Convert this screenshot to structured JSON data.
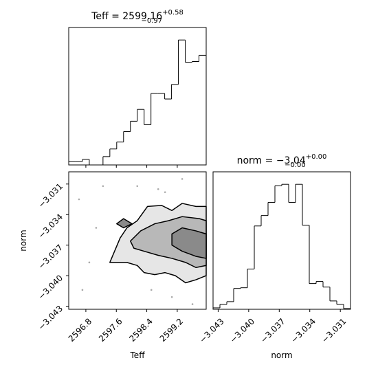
{
  "chart_data": [
    {
      "type": "histogram",
      "title": "Teff = 2599.16",
      "title_sup": "+0.58",
      "title_sub": "−0.97",
      "bins": [
        2596.35,
        2596.53,
        2596.71,
        2596.89,
        2597.07,
        2597.25,
        2597.43,
        2597.61,
        2597.79,
        2597.97,
        2598.15,
        2598.33,
        2598.51,
        2598.69,
        2598.87,
        2599.05,
        2599.23,
        2599.41,
        2599.59,
        2599.77,
        2599.95
      ],
      "values": [
        5,
        5,
        8,
        0,
        0,
        12,
        23,
        33,
        48,
        63,
        80,
        58,
        103,
        103,
        95,
        116,
        180,
        148,
        149,
        158
      ],
      "color": "#000000",
      "xlim": [
        2596.35,
        2599.96
      ],
      "ylim": [
        0,
        198
      ],
      "xticks": [
        2596.8,
        2597.6,
        2598.4,
        2599.2
      ],
      "tick_labels": false
    },
    {
      "type": "contour",
      "xlabel": "Teff",
      "ylabel": "norm",
      "xlim": [
        2596.35,
        2599.96
      ],
      "ylim": [
        -3.0433,
        -3.0298
      ],
      "xticks": [
        2596.8,
        2597.6,
        2598.4,
        2599.2
      ],
      "yticks": [
        {
          "value": -3.043,
          "label": "−3.043"
        },
        {
          "value": -3.04,
          "label": "−3.040"
        },
        {
          "value": -3.037,
          "label": "−3.037"
        },
        {
          "value": -3.034,
          "label": "−3.034"
        },
        {
          "value": -3.031,
          "label": "−3.031"
        }
      ],
      "points": {
        "x": [
          2596.62,
          2596.71,
          2597.07,
          2597.25,
          2598.15,
          2598.7,
          2599.06,
          2599.33,
          2599.6,
          2596.89,
          2598.88,
          2598.52
        ],
        "y": [
          -3.0325,
          -3.0414,
          -3.0353,
          -3.0312,
          -3.0312,
          -3.0315,
          -3.0421,
          -3.0305,
          -3.0428,
          -3.0387,
          -3.0318,
          -3.0414
        ],
        "color": "#aaaaaa"
      },
      "levels": [
        {
          "fill": "#e6e6e6",
          "x": [
            2597.43,
            2597.7,
            2597.88,
            2598.15,
            2598.42,
            2598.79,
            2599.06,
            2599.33,
            2599.69,
            2599.96,
            2599.96,
            2599.69,
            2599.42,
            2599.15,
            2598.88,
            2598.61,
            2598.33,
            2598.15,
            2597.88,
            2597.61
          ],
          "y": [
            -3.0387,
            -3.0363,
            -3.0353,
            -3.0346,
            -3.0332,
            -3.0331,
            -3.0336,
            -3.0329,
            -3.0332,
            -3.0332,
            -3.04,
            -3.0404,
            -3.0407,
            -3.04,
            -3.0397,
            -3.0399,
            -3.0397,
            -3.039,
            -3.0387,
            -3.0387
          ]
        },
        {
          "fill": "#b8b8b8",
          "x": [
            2597.97,
            2598.24,
            2598.61,
            2598.97,
            2599.33,
            2599.78,
            2599.96,
            2599.96,
            2599.69,
            2599.42,
            2599.06,
            2598.7,
            2598.33,
            2598.06
          ],
          "y": [
            -3.0366,
            -3.0356,
            -3.0349,
            -3.0346,
            -3.0342,
            -3.0344,
            -3.0346,
            -3.039,
            -3.0392,
            -3.0387,
            -3.0383,
            -3.038,
            -3.0376,
            -3.0373
          ]
        },
        {
          "fill": "#8a8a8a",
          "x": [
            2599.06,
            2599.33,
            2599.69,
            2599.96,
            2599.96,
            2599.69,
            2599.33,
            2599.06
          ],
          "y": [
            -3.0359,
            -3.0353,
            -3.0356,
            -3.0359,
            -3.0383,
            -3.0381,
            -3.0376,
            -3.037
          ]
        },
        {
          "fill": "#8a8a8a",
          "x": [
            2597.61,
            2597.79,
            2598.01,
            2597.79
          ],
          "y": [
            -3.0349,
            -3.0344,
            -3.0349,
            -3.0353
          ]
        }
      ]
    },
    {
      "type": "histogram",
      "title": "norm = −3.04",
      "title_sup": "+0.00",
      "title_sub": "−0.00",
      "xlabel": "norm",
      "bins": [
        -3.0435,
        -3.042825,
        -3.04215,
        -3.041475,
        -3.0408,
        -3.040125,
        -3.03945,
        -3.038775,
        -3.0381,
        -3.037425,
        -3.03675,
        -3.036075,
        -3.0354,
        -3.034725,
        -3.03405,
        -3.033375,
        -3.0327,
        -3.032025,
        -3.03135,
        -3.030675,
        -3.03
      ],
      "values": [
        2,
        7,
        11,
        30,
        31,
        58,
        120,
        135,
        154,
        178,
        180,
        154,
        180,
        121,
        37,
        40,
        32,
        12,
        7,
        1
      ],
      "color": "#000000",
      "xlim": [
        -3.0435,
        -3.03
      ],
      "ylim": [
        0,
        198
      ],
      "xticks": [
        {
          "value": -3.043,
          "label": "−3.043"
        },
        {
          "value": -3.04,
          "label": "−3.040"
        },
        {
          "value": -3.037,
          "label": "−3.037"
        },
        {
          "value": -3.034,
          "label": "−3.034"
        },
        {
          "value": -3.031,
          "label": "−3.031"
        }
      ]
    }
  ]
}
